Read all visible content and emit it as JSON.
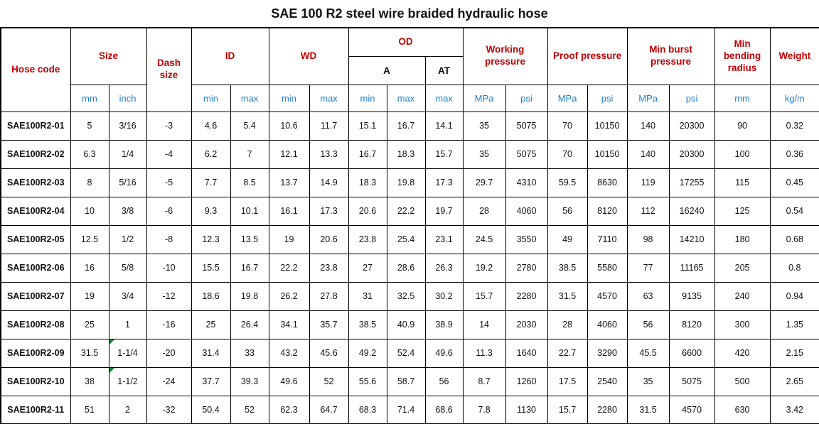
{
  "title": "SAE 100 R2 steel wire braided hydraulic hose",
  "colors": {
    "header_red": "#c00000",
    "unit_blue": "#1e7fd2",
    "marker_green": "#108a30",
    "border_color": "#000000"
  },
  "header": {
    "hose_code": "Hose code",
    "size": "Size",
    "dash_size": "Dash size",
    "id": "ID",
    "wd": "WD",
    "od": "OD",
    "od_a": "A",
    "od_at": "AT",
    "working_pressure": "Working pressure",
    "proof_pressure": "Proof pressure",
    "min_burst_pressure": "Min burst pressure",
    "min_bending_radius": "Min bending radius",
    "weight": "Weight"
  },
  "unit_row": [
    "mm",
    "inch",
    "min",
    "max",
    "min",
    "max",
    "min",
    "max",
    "max",
    "MPa",
    "psi",
    "MPa",
    "psi",
    "MPa",
    "psi",
    "mm",
    "kg/m"
  ],
  "rows": [
    [
      "SAE100R2-01",
      "5",
      "3/16",
      "-3",
      "4.6",
      "5.4",
      "10.6",
      "11.7",
      "15.1",
      "16.7",
      "14.1",
      "35",
      "5075",
      "70",
      "10150",
      "140",
      "20300",
      "90",
      "0.32"
    ],
    [
      "SAE100R2-02",
      "6.3",
      "1/4",
      "-4",
      "6.2",
      "7",
      "12.1",
      "13.3",
      "16.7",
      "18.3",
      "15.7",
      "35",
      "5075",
      "70",
      "10150",
      "140",
      "20300",
      "100",
      "0.36"
    ],
    [
      "SAE100R2-03",
      "8",
      "5/16",
      "-5",
      "7.7",
      "8.5",
      "13.7",
      "14.9",
      "18.3",
      "19.8",
      "17.3",
      "29.7",
      "4310",
      "59.5",
      "8630",
      "119",
      "17255",
      "115",
      "0.45"
    ],
    [
      "SAE100R2-04",
      "10",
      "3/8",
      "-6",
      "9.3",
      "10.1",
      "16.1",
      "17.3",
      "20.6",
      "22.2",
      "19.7",
      "28",
      "4060",
      "56",
      "8120",
      "112",
      "16240",
      "125",
      "0.54"
    ],
    [
      "SAE100R2-05",
      "12.5",
      "1/2",
      "-8",
      "12.3",
      "13.5",
      "19",
      "20.6",
      "23.8",
      "25.4",
      "23.1",
      "24.5",
      "3550",
      "49",
      "7110",
      "98",
      "14210",
      "180",
      "0.68"
    ],
    [
      "SAE100R2-06",
      "16",
      "5/8",
      "-10",
      "15.5",
      "16.7",
      "22.2",
      "23.8",
      "27",
      "28.6",
      "26.3",
      "19.2",
      "2780",
      "38.5",
      "5580",
      "77",
      "11165",
      "205",
      "0.8"
    ],
    [
      "SAE100R2-07",
      "19",
      "3/4",
      "-12",
      "18.6",
      "19.8",
      "26.2",
      "27.8",
      "31",
      "32.5",
      "30.2",
      "15.7",
      "2280",
      "31.5",
      "4570",
      "63",
      "9135",
      "240",
      "0.94"
    ],
    [
      "SAE100R2-08",
      "25",
      "1",
      "-16",
      "25",
      "26.4",
      "34.1",
      "35.7",
      "38.5",
      "40.9",
      "38.9",
      "14",
      "2030",
      "28",
      "4060",
      "56",
      "8120",
      "300",
      "1.35"
    ],
    [
      "SAE100R2-09",
      "31.5",
      "1-1/4",
      "-20",
      "31.4",
      "33",
      "43.2",
      "45.6",
      "49.2",
      "52.4",
      "49.6",
      "11.3",
      "1640",
      "22.7",
      "3290",
      "45.5",
      "6600",
      "420",
      "2.15"
    ],
    [
      "SAE100R2-10",
      "38",
      "1-1/2",
      "-24",
      "37.7",
      "39.3",
      "49.6",
      "52",
      "55.6",
      "58.7",
      "56",
      "8.7",
      "1260",
      "17.5",
      "2540",
      "35",
      "5075",
      "500",
      "2.65"
    ],
    [
      "SAE100R2-11",
      "51",
      "2",
      "-32",
      "50.4",
      "52",
      "62.3",
      "64.7",
      "68.3",
      "71.4",
      "68.6",
      "7.8",
      "1130",
      "15.7",
      "2280",
      "31.5",
      "4570",
      "630",
      "3.42"
    ]
  ],
  "comment_markers": [
    [
      8,
      2
    ],
    [
      9,
      2
    ]
  ]
}
